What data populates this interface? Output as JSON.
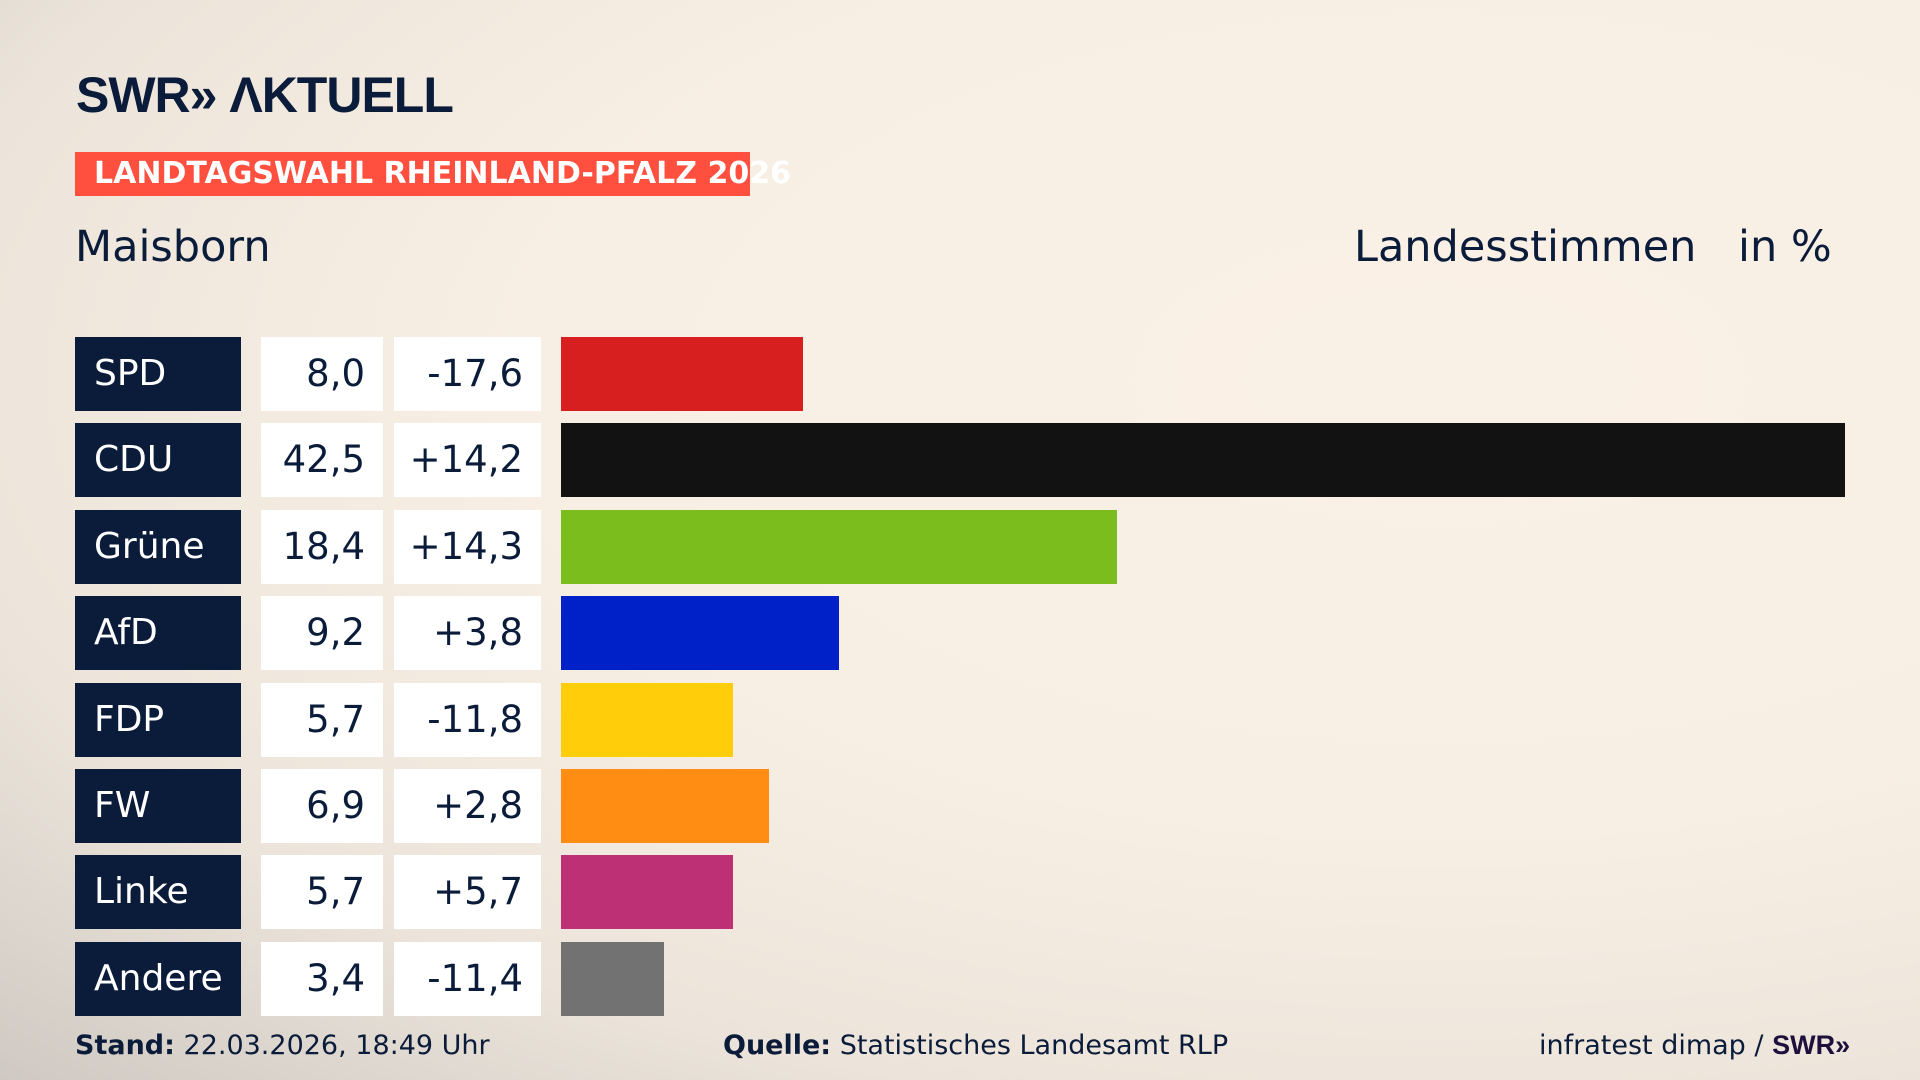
{
  "header": {
    "logo": "SWR» ΛKTUELL",
    "banner": "LANDTAGSWAHL RHEINLAND-PFALZ 2026",
    "place": "Maisborn",
    "measure": "Landesstimmen",
    "unit": "in %"
  },
  "colors": {
    "banner": "#ff4f3f",
    "navy": "#0b1c3a"
  },
  "chart_data": {
    "type": "bar",
    "orientation": "horizontal",
    "categories": [
      "SPD",
      "CDU",
      "Grüne",
      "AfD",
      "FDP",
      "FW",
      "Linke",
      "Andere"
    ],
    "values": [
      8.0,
      42.5,
      18.4,
      9.2,
      5.7,
      6.9,
      5.7,
      3.4
    ],
    "value_labels": [
      "8,0",
      "42,5",
      "18,4",
      "9,2",
      "5,7",
      "6,9",
      "5,7",
      "3,4"
    ],
    "diff_labels": [
      "-17,6",
      "+14,2",
      "+14,3",
      "+3,8",
      "-11,8",
      "+2,8",
      "+5,7",
      "-11,4"
    ],
    "colors": [
      "#d81f1f",
      "#121212",
      "#7bbd1c",
      "#0021c8",
      "#ffcd0a",
      "#ff8d14",
      "#bd3075",
      "#727272"
    ],
    "xlim": [
      0,
      42.5
    ]
  },
  "footer": {
    "stand_label": "Stand:",
    "stand_value": "22.03.2026, 18:49 Uhr",
    "source_label": "Quelle:",
    "source_value": "Statistisches Landesamt RLP",
    "credit": "infratest dimap /",
    "credit_logo": "SWR»"
  }
}
